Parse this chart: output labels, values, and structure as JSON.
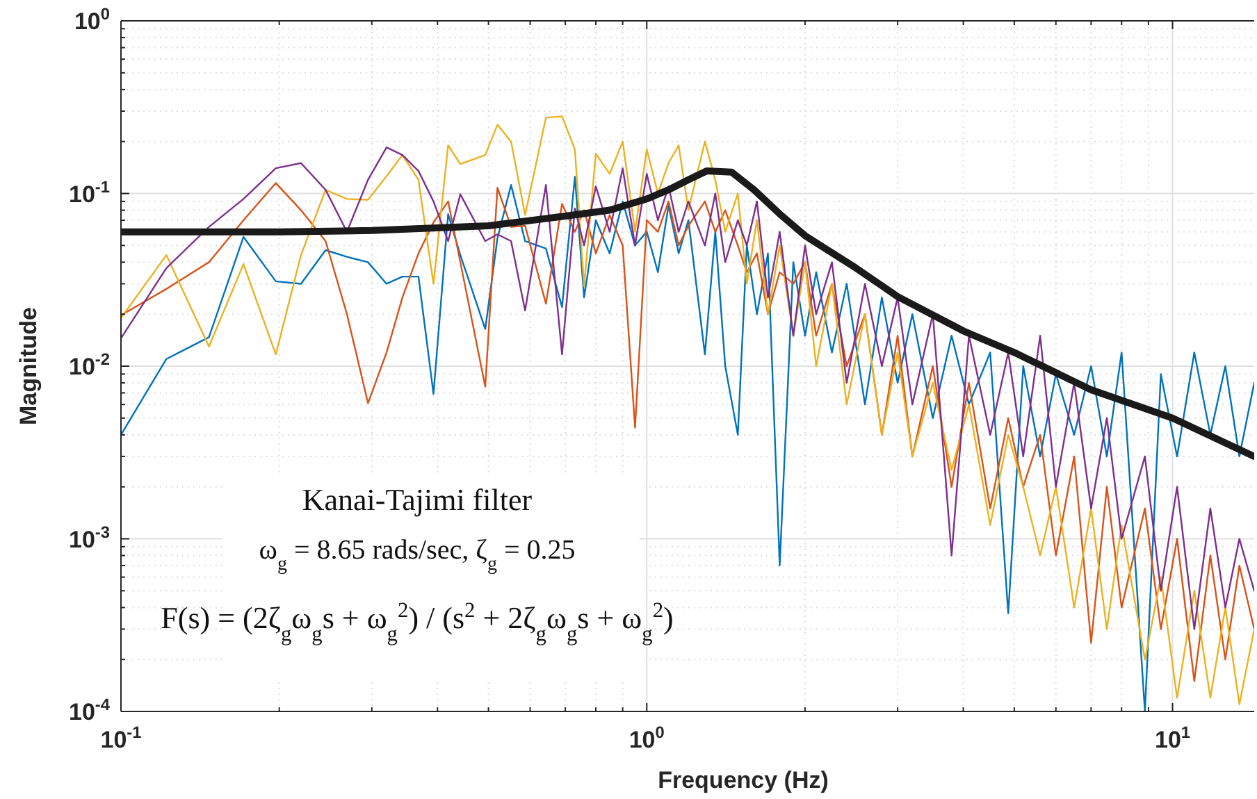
{
  "chart_data": {
    "type": "line",
    "xlabel": "Frequency (Hz)",
    "ylabel": "Magnitude",
    "log": "xy",
    "grid": true,
    "line_style": "solid",
    "xlim": [
      0.1,
      14.3
    ],
    "ylim": [
      0.0001,
      1
    ],
    "xticks": [
      {
        "value": 0.1,
        "label": "10$^{-1}$"
      },
      {
        "value": 0.2,
        "label": null
      },
      {
        "value": 0.3,
        "label": null
      },
      {
        "value": 0.4,
        "label": null
      },
      {
        "value": 0.5,
        "label": null
      },
      {
        "value": 0.6,
        "label": null
      },
      {
        "value": 0.7,
        "label": null
      },
      {
        "value": 0.8,
        "label": null
      },
      {
        "value": 0.9,
        "label": null
      },
      {
        "value": 1,
        "label": "10$^{0}$"
      },
      {
        "value": 2,
        "label": null
      },
      {
        "value": 3,
        "label": null
      },
      {
        "value": 4,
        "label": null
      },
      {
        "value": 5,
        "label": null
      },
      {
        "value": 6,
        "label": null
      },
      {
        "value": 7,
        "label": null
      },
      {
        "value": 8,
        "label": null
      },
      {
        "value": 9,
        "label": null
      },
      {
        "value": 10,
        "label": "10$^{1}$"
      }
    ],
    "yticks": [
      {
        "value": 0.0001,
        "label": "10$^{-4}$"
      },
      {
        "value": 0.0002,
        "label": null
      },
      {
        "value": 0.0003,
        "label": null
      },
      {
        "value": 0.0004,
        "label": null
      },
      {
        "value": 0.0005,
        "label": null
      },
      {
        "value": 0.0006,
        "label": null
      },
      {
        "value": 0.0007,
        "label": null
      },
      {
        "value": 0.0008,
        "label": null
      },
      {
        "value": 0.0009,
        "label": null
      },
      {
        "value": 0.001,
        "label": "10$^{-3}$"
      },
      {
        "value": 0.002,
        "label": null
      },
      {
        "value": 0.003,
        "label": null
      },
      {
        "value": 0.004,
        "label": null
      },
      {
        "value": 0.005,
        "label": null
      },
      {
        "value": 0.006,
        "label": null
      },
      {
        "value": 0.007,
        "label": null
      },
      {
        "value": 0.008,
        "label": null
      },
      {
        "value": 0.009,
        "label": null
      },
      {
        "value": 0.01,
        "label": "10$^{-2}$"
      },
      {
        "value": 0.02,
        "label": null
      },
      {
        "value": 0.03,
        "label": null
      },
      {
        "value": 0.04,
        "label": null
      },
      {
        "value": 0.05,
        "label": null
      },
      {
        "value": 0.06,
        "label": null
      },
      {
        "value": 0.07,
        "label": null
      },
      {
        "value": 0.08,
        "label": null
      },
      {
        "value": 0.09,
        "label": null
      },
      {
        "value": 0.1,
        "label": "10$^{-1}$"
      },
      {
        "value": 0.2,
        "label": null
      },
      {
        "value": 0.3,
        "label": null
      },
      {
        "value": 0.4,
        "label": null
      },
      {
        "value": 0.5,
        "label": null
      },
      {
        "value": 0.6,
        "label": null
      },
      {
        "value": 0.7,
        "label": null
      },
      {
        "value": 0.8,
        "label": null
      },
      {
        "value": 0.9,
        "label": null
      },
      {
        "value": 1,
        "label": "10$^{0}$"
      }
    ],
    "x": [
      0.1,
      0.122,
      0.147,
      0.171,
      0.197,
      0.22,
      0.245,
      0.269,
      0.295,
      0.32,
      0.343,
      0.368,
      0.393,
      0.419,
      0.442,
      0.493,
      0.52,
      0.552,
      0.587,
      0.643,
      0.69,
      0.73,
      0.76,
      0.8,
      0.85,
      0.9,
      0.95,
      1.0,
      1.05,
      1.1,
      1.15,
      1.2,
      1.29,
      1.35,
      1.41,
      1.49,
      1.55,
      1.62,
      1.7,
      1.79,
      1.9,
      2.0,
      2.1,
      2.25,
      2.4,
      2.6,
      2.8,
      3.0,
      3.2,
      3.5,
      3.8,
      4.1,
      4.5,
      4.87,
      5.2,
      5.6,
      6.0,
      6.5,
      7.0,
      7.5,
      8.0,
      8.86,
      9.5,
      10.2,
      11,
      11.8,
      12.6,
      13.4,
      14.3
    ],
    "series": [
      {
        "color": "#0072bd",
        "values": [
          0.004,
          0.011,
          0.0147,
          0.056,
          0.031,
          0.03,
          0.047,
          0.043,
          0.04,
          0.03,
          0.033,
          0.033,
          0.0069,
          0.076,
          0.044,
          0.0164,
          0.055,
          0.112,
          0.053,
          0.048,
          0.022,
          0.125,
          0.025,
          0.07,
          0.045,
          0.09,
          0.05,
          0.06,
          0.035,
          0.085,
          0.045,
          0.07,
          0.0117,
          0.06,
          0.01,
          0.004,
          0.05,
          0.02,
          0.045,
          0.0007,
          0.04,
          0.015,
          0.035,
          0.012,
          0.03,
          0.006,
          0.025,
          0.008,
          0.02,
          0.005,
          0.015,
          0.006,
          0.012,
          0.00037,
          0.01,
          0.003,
          0.009,
          0.004,
          0.01,
          0.003,
          0.012,
          0.0001,
          0.009,
          0.003,
          0.012,
          0.004,
          0.01,
          0.003,
          0.008
        ]
      },
      {
        "color": "#d95319",
        "values": [
          0.0197,
          0.028,
          0.04,
          0.07,
          0.115,
          0.08,
          0.053,
          0.02,
          0.0061,
          0.012,
          0.025,
          0.045,
          0.068,
          0.09,
          0.04,
          0.0076,
          0.108,
          0.064,
          0.065,
          0.023,
          0.087,
          0.06,
          0.08,
          0.045,
          0.075,
          0.05,
          0.0044,
          0.07,
          0.06,
          0.09,
          0.05,
          0.065,
          0.09,
          0.06,
          0.08,
          0.05,
          0.035,
          0.045,
          0.02,
          0.035,
          0.03,
          0.04,
          0.015,
          0.03,
          0.01,
          0.02,
          0.004,
          0.015,
          0.003,
          0.01,
          0.002,
          0.008,
          0.0015,
          0.005,
          0.002,
          0.004,
          0.0008,
          0.003,
          0.00025,
          0.002,
          0.0004,
          0.0015,
          0.0003,
          0.001,
          0.00015,
          0.0008,
          0.0002,
          0.0007,
          0.0003
        ]
      },
      {
        "color": "#edb120",
        "values": [
          0.019,
          0.044,
          0.013,
          0.039,
          0.0117,
          0.044,
          0.105,
          0.093,
          0.092,
          0.126,
          0.167,
          0.12,
          0.03,
          0.19,
          0.148,
          0.167,
          0.25,
          0.2,
          0.075,
          0.275,
          0.28,
          0.18,
          0.029,
          0.17,
          0.13,
          0.2,
          0.06,
          0.18,
          0.1,
          0.15,
          0.19,
          0.08,
          0.2,
          0.12,
          0.06,
          0.1,
          0.03,
          0.07,
          0.02,
          0.05,
          0.015,
          0.04,
          0.01,
          0.03,
          0.006,
          0.02,
          0.004,
          0.012,
          0.003,
          0.008,
          0.0025,
          0.006,
          0.0012,
          0.004,
          0.002,
          0.0008,
          0.002,
          0.0004,
          0.0015,
          0.0003,
          0.0012,
          0.0002,
          0.0006,
          0.00012,
          0.0005,
          0.00012,
          0.0004,
          0.00011,
          0.0003
        ]
      },
      {
        "color": "#7e2f8e",
        "values": [
          0.0145,
          0.037,
          0.064,
          0.093,
          0.14,
          0.15,
          0.105,
          0.06,
          0.12,
          0.185,
          0.167,
          0.135,
          0.09,
          0.053,
          0.099,
          0.053,
          0.058,
          0.053,
          0.021,
          0.112,
          0.0117,
          0.082,
          0.05,
          0.11,
          0.06,
          0.14,
          0.05,
          0.13,
          0.07,
          0.11,
          0.06,
          0.09,
          0.05,
          0.1,
          0.04,
          0.07,
          0.05,
          0.09,
          0.025,
          0.06,
          0.015,
          0.05,
          0.02,
          0.04,
          0.008,
          0.03,
          0.01,
          0.025,
          0.006,
          0.02,
          0.0008,
          0.015,
          0.004,
          0.012,
          0.003,
          0.015,
          0.002,
          0.008,
          0.0015,
          0.005,
          0.001,
          0.003,
          0.0005,
          0.002,
          0.0003,
          0.0015,
          0.0004,
          0.001,
          0.0005
        ]
      },
      {
        "color": "#1a1a1a",
        "x": [
          0.1,
          0.2,
          0.3,
          0.5,
          0.7,
          0.85,
          1.0,
          1.1,
          1.2,
          1.3,
          1.45,
          1.6,
          1.8,
          2.0,
          2.5,
          3,
          4,
          5,
          7,
          10,
          14.3
        ],
        "values": [
          0.06,
          0.06,
          0.061,
          0.065,
          0.074,
          0.08,
          0.093,
          0.105,
          0.12,
          0.135,
          0.133,
          0.105,
          0.075,
          0.057,
          0.037,
          0.0253,
          0.016,
          0.012,
          0.0073,
          0.005,
          0.003
        ]
      }
    ],
    "annotations": [
      "Kanai-Tajimi filter",
      "ω$_{g}$ = 8.65 rads/sec,   ζ$_{g}$ = 0.25",
      "F(s) = (2ζ$_{g}$ω$_{g}$s + ω$_{g}$$^{2}$) / (s$^{2}$ + 2ζ$_{g}$ω$_{g}$s + ω$_{g}$$^{2}$)"
    ]
  }
}
